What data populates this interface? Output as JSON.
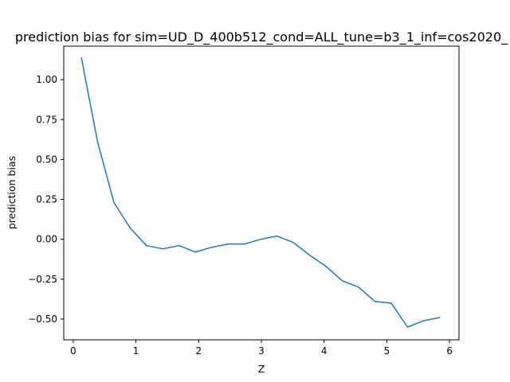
{
  "chart_data": {
    "type": "line",
    "title": "prediction bias for sim=UD_D_400b512_cond=ALL_tune=b3_1_inf=cos2020_",
    "xlabel": "Z",
    "ylabel": "prediction bias",
    "xlim": [
      -0.15,
      6.15
    ],
    "ylim": [
      -0.63,
      1.21
    ],
    "x_ticks": [
      0,
      1,
      2,
      3,
      4,
      5,
      6
    ],
    "x_tick_labels": [
      "0",
      "1",
      "2",
      "3",
      "4",
      "5",
      "6"
    ],
    "y_ticks": [
      -0.5,
      -0.25,
      0.0,
      0.25,
      0.5,
      0.75,
      1.0
    ],
    "y_tick_labels": [
      "−0.50",
      "−0.25",
      "0.00",
      "0.25",
      "0.50",
      "0.75",
      "1.00"
    ],
    "grid": false,
    "series": [
      {
        "color": "#1f77b4",
        "x": [
          0.13,
          0.39,
          0.65,
          0.91,
          1.17,
          1.43,
          1.69,
          1.95,
          2.21,
          2.47,
          2.73,
          2.99,
          3.25,
          3.51,
          3.77,
          4.03,
          4.29,
          4.55,
          4.81,
          5.07,
          5.33,
          5.59,
          5.85
        ],
        "y": [
          1.14,
          0.61,
          0.23,
          0.07,
          -0.04,
          -0.06,
          -0.04,
          -0.08,
          -0.05,
          -0.03,
          -0.03,
          0.0,
          0.02,
          -0.02,
          -0.1,
          -0.17,
          -0.26,
          -0.3,
          -0.39,
          -0.4,
          -0.55,
          -0.51,
          -0.49
        ]
      }
    ]
  }
}
